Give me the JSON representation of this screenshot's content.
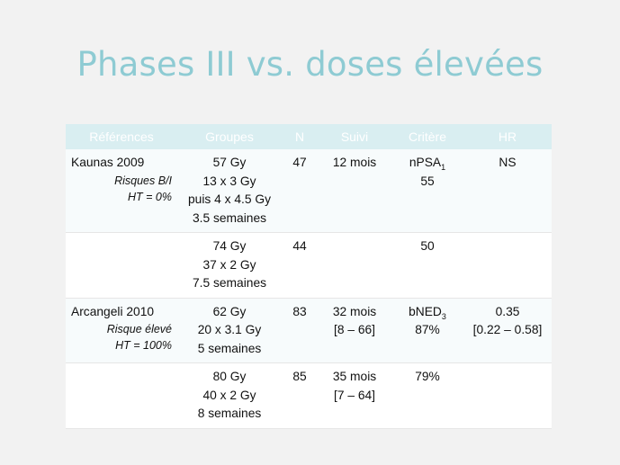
{
  "title": "Phases III vs. doses élevées",
  "columns": [
    "Références",
    "Groupes",
    "N",
    "Suivi",
    "Critère",
    "HR"
  ],
  "rows": [
    {
      "ref": "Kaunas 2009",
      "ref_sub": [
        "Risques B/I",
        "HT = 0%"
      ],
      "groupes": [
        "57 Gy",
        "13 x 3 Gy",
        "puis 4 x 4.5 Gy",
        "3.5 semaines"
      ],
      "n": "47",
      "suivi": [
        "12 mois"
      ],
      "critere_main": "nPSA",
      "critere_sub": "1",
      "critere_extra": "55",
      "hr": [
        "NS"
      ]
    },
    {
      "ref": "",
      "ref_sub": [],
      "groupes": [
        "74 Gy",
        "37 x 2 Gy",
        "7.5 semaines"
      ],
      "n": "44",
      "suivi": [],
      "critere_main": "50",
      "critere_sub": "",
      "critere_extra": "",
      "hr": []
    },
    {
      "ref": "Arcangeli 2010",
      "ref_sub": [
        "Risque élevé",
        "HT = 100%"
      ],
      "groupes": [
        "62 Gy",
        "20 x 3.1 Gy",
        "5 semaines"
      ],
      "n": "83",
      "suivi": [
        "32 mois",
        "[8 – 66]"
      ],
      "critere_main": "bNED",
      "critere_sub": "3",
      "critere_extra": "87%",
      "hr": [
        "0.35",
        "[0.22 – 0.58]"
      ]
    },
    {
      "ref": "",
      "ref_sub": [],
      "groupes": [
        "80 Gy",
        "40 x 2 Gy",
        "8 semaines"
      ],
      "n": "85",
      "suivi": [
        "35 mois",
        "[7 – 64]"
      ],
      "critere_main": "79%",
      "critere_sub": "",
      "critere_extra": "",
      "hr": []
    }
  ]
}
